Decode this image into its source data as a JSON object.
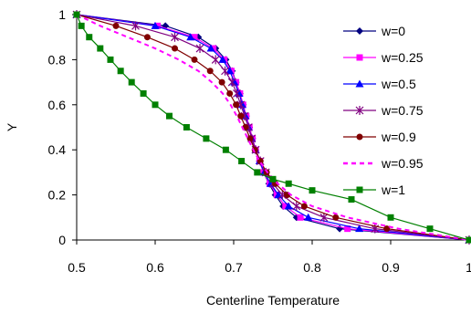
{
  "chart_data": {
    "type": "line",
    "xlabel": "Centerline Temperature",
    "ylabel": "Y",
    "xlim": [
      0.5,
      1.0
    ],
    "ylim": [
      0,
      1.0
    ],
    "x_ticks": [
      0.5,
      0.6,
      0.7,
      0.8,
      0.9,
      1.0
    ],
    "x_tick_labels": [
      "0.5",
      "0.6",
      "0.7",
      "0.8",
      "0.9",
      "1"
    ],
    "y_ticks": [
      0,
      0.2,
      0.4,
      0.6,
      0.8,
      1.0
    ],
    "y_tick_labels": [
      "0",
      "0.2",
      "0.4",
      "0.6",
      "0.8",
      "1"
    ],
    "grid": false,
    "legend_position": "right",
    "series": [
      {
        "name": "w=0",
        "color": "#000080",
        "marker": "diamond",
        "dash": "solid",
        "points": [
          [
            0.5,
            1.0
          ],
          [
            0.613,
            0.95
          ],
          [
            0.655,
            0.9
          ],
          [
            0.677,
            0.85
          ],
          [
            0.69,
            0.8
          ],
          [
            0.698,
            0.75
          ],
          [
            0.703,
            0.7
          ],
          [
            0.708,
            0.65
          ],
          [
            0.712,
            0.6
          ],
          [
            0.716,
            0.55
          ],
          [
            0.72,
            0.5
          ],
          [
            0.724,
            0.45
          ],
          [
            0.728,
            0.4
          ],
          [
            0.733,
            0.35
          ],
          [
            0.738,
            0.3
          ],
          [
            0.745,
            0.25
          ],
          [
            0.753,
            0.2
          ],
          [
            0.763,
            0.15
          ],
          [
            0.78,
            0.1
          ],
          [
            0.835,
            0.05
          ],
          [
            1.0,
            0.0
          ]
        ]
      },
      {
        "name": "w=0.25",
        "color": "#ff00ff",
        "marker": "square",
        "dash": "solid",
        "points": [
          [
            0.5,
            1.0
          ],
          [
            0.603,
            0.95
          ],
          [
            0.65,
            0.9
          ],
          [
            0.674,
            0.85
          ],
          [
            0.688,
            0.8
          ],
          [
            0.697,
            0.75
          ],
          [
            0.703,
            0.7
          ],
          [
            0.708,
            0.65
          ],
          [
            0.712,
            0.6
          ],
          [
            0.716,
            0.55
          ],
          [
            0.72,
            0.5
          ],
          [
            0.724,
            0.45
          ],
          [
            0.728,
            0.4
          ],
          [
            0.733,
            0.35
          ],
          [
            0.738,
            0.3
          ],
          [
            0.746,
            0.25
          ],
          [
            0.755,
            0.2
          ],
          [
            0.766,
            0.15
          ],
          [
            0.785,
            0.1
          ],
          [
            0.845,
            0.05
          ],
          [
            1.0,
            0.0
          ]
        ]
      },
      {
        "name": "w=0.5",
        "color": "#0000ff",
        "marker": "triangle",
        "dash": "solid",
        "points": [
          [
            0.5,
            1.0
          ],
          [
            0.6,
            0.95
          ],
          [
            0.645,
            0.9
          ],
          [
            0.671,
            0.85
          ],
          [
            0.686,
            0.8
          ],
          [
            0.695,
            0.75
          ],
          [
            0.701,
            0.7
          ],
          [
            0.707,
            0.65
          ],
          [
            0.711,
            0.6
          ],
          [
            0.715,
            0.55
          ],
          [
            0.719,
            0.5
          ],
          [
            0.723,
            0.45
          ],
          [
            0.728,
            0.4
          ],
          [
            0.733,
            0.35
          ],
          [
            0.739,
            0.3
          ],
          [
            0.747,
            0.25
          ],
          [
            0.757,
            0.2
          ],
          [
            0.77,
            0.15
          ],
          [
            0.795,
            0.1
          ],
          [
            0.86,
            0.05
          ],
          [
            1.0,
            0.0
          ]
        ]
      },
      {
        "name": "w=0.75",
        "color": "#800080",
        "marker": "star",
        "dash": "solid",
        "points": [
          [
            0.5,
            1.0
          ],
          [
            0.575,
            0.95
          ],
          [
            0.625,
            0.9
          ],
          [
            0.657,
            0.85
          ],
          [
            0.677,
            0.8
          ],
          [
            0.689,
            0.75
          ],
          [
            0.698,
            0.7
          ],
          [
            0.704,
            0.65
          ],
          [
            0.709,
            0.6
          ],
          [
            0.714,
            0.55
          ],
          [
            0.719,
            0.5
          ],
          [
            0.723,
            0.45
          ],
          [
            0.728,
            0.4
          ],
          [
            0.734,
            0.35
          ],
          [
            0.741,
            0.3
          ],
          [
            0.75,
            0.25
          ],
          [
            0.762,
            0.2
          ],
          [
            0.78,
            0.15
          ],
          [
            0.815,
            0.1
          ],
          [
            0.88,
            0.05
          ],
          [
            1.0,
            0.0
          ]
        ]
      },
      {
        "name": "w=0.9",
        "color": "#800000",
        "marker": "circle",
        "dash": "solid",
        "points": [
          [
            0.5,
            1.0
          ],
          [
            0.55,
            0.95
          ],
          [
            0.59,
            0.9
          ],
          [
            0.625,
            0.85
          ],
          [
            0.65,
            0.8
          ],
          [
            0.67,
            0.75
          ],
          [
            0.685,
            0.7
          ],
          [
            0.695,
            0.65
          ],
          [
            0.703,
            0.6
          ],
          [
            0.709,
            0.55
          ],
          [
            0.715,
            0.5
          ],
          [
            0.721,
            0.45
          ],
          [
            0.727,
            0.4
          ],
          [
            0.734,
            0.35
          ],
          [
            0.742,
            0.3
          ],
          [
            0.753,
            0.25
          ],
          [
            0.768,
            0.2
          ],
          [
            0.79,
            0.15
          ],
          [
            0.83,
            0.1
          ],
          [
            0.895,
            0.05
          ],
          [
            1.0,
            0.0
          ]
        ]
      },
      {
        "name": "w=0.95",
        "color": "#ff00ff",
        "marker": "none",
        "dash": "dashed",
        "points": [
          [
            0.5,
            1.0
          ],
          [
            0.53,
            0.95
          ],
          [
            0.565,
            0.9
          ],
          [
            0.6,
            0.85
          ],
          [
            0.63,
            0.8
          ],
          [
            0.655,
            0.75
          ],
          [
            0.672,
            0.7
          ],
          [
            0.686,
            0.65
          ],
          [
            0.696,
            0.6
          ],
          [
            0.704,
            0.55
          ],
          [
            0.711,
            0.5
          ],
          [
            0.718,
            0.45
          ],
          [
            0.725,
            0.4
          ],
          [
            0.733,
            0.35
          ],
          [
            0.743,
            0.3
          ],
          [
            0.756,
            0.25
          ],
          [
            0.773,
            0.2
          ],
          [
            0.8,
            0.15
          ],
          [
            0.845,
            0.1
          ],
          [
            0.91,
            0.05
          ],
          [
            1.0,
            0.0
          ]
        ]
      },
      {
        "name": "w=1",
        "color": "#008000",
        "marker": "square",
        "dash": "solid",
        "points": [
          [
            0.5,
            1.0
          ],
          [
            0.506,
            0.95
          ],
          [
            0.516,
            0.9
          ],
          [
            0.53,
            0.85
          ],
          [
            0.543,
            0.8
          ],
          [
            0.556,
            0.75
          ],
          [
            0.57,
            0.7
          ],
          [
            0.585,
            0.65
          ],
          [
            0.6,
            0.6
          ],
          [
            0.618,
            0.55
          ],
          [
            0.64,
            0.5
          ],
          [
            0.665,
            0.45
          ],
          [
            0.69,
            0.4
          ],
          [
            0.71,
            0.35
          ],
          [
            0.73,
            0.3
          ],
          [
            0.75,
            0.27
          ],
          [
            0.77,
            0.25
          ],
          [
            0.8,
            0.22
          ],
          [
            0.85,
            0.18
          ],
          [
            0.9,
            0.1
          ],
          [
            0.95,
            0.05
          ],
          [
            1.0,
            0.0
          ]
        ]
      }
    ]
  }
}
